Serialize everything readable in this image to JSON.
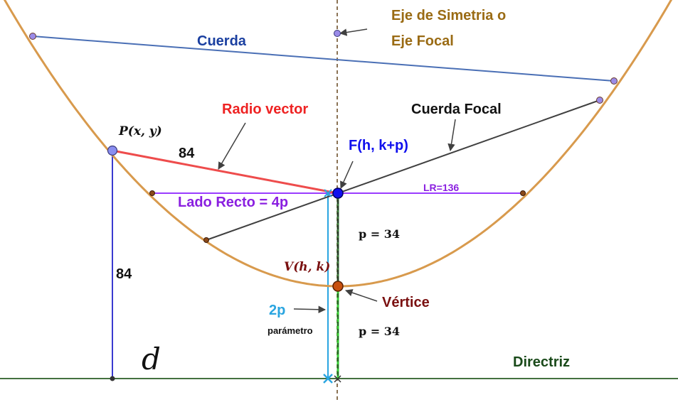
{
  "labels": {
    "axis_title_line1": "Eje de Simetria o",
    "axis_title_line2": "Eje Focal",
    "chord": "Cuerda",
    "radius_vector": "Radio vector",
    "focal_chord": "Cuerda Focal",
    "point_p": "P(x, y)",
    "focus": "F(h, k+p)",
    "radius_length": "84",
    "latus_rectum": "Lado Recto = 4p",
    "lr_value": "LR=136",
    "p_upper": "p = 34",
    "vertex_coords": "V(h, k)",
    "vertex": "Vértice",
    "two_p": "2p",
    "parameter": "parámetro",
    "p_lower": "p = 34",
    "vertical_length": "84",
    "d_symbol": "d",
    "directrix": "Directriz"
  },
  "colors": {
    "parabola": "#d89a4d",
    "chord": "#4a6fb5",
    "radius_vector": "#ee4c4c",
    "focal_chord": "#404040",
    "latus_rectum": "#9a3cff",
    "axis": "#8b7355",
    "directrix": "#44713f",
    "two_p": "#2aa5e0",
    "green_segment": "#33cc33",
    "focus": "#1010ee",
    "vertex": "#c8500e",
    "text_brown": "#9a6b14",
    "text_blue": "#1a3fa0",
    "text_red": "#ee2222",
    "text_purple": "#8a1fe0",
    "text_dark_red": "#7a1010",
    "text_green": "#1a4a1a"
  },
  "icons": {
    "focus_point": "focus-point-icon",
    "vertex_point": "vertex-point-icon"
  }
}
